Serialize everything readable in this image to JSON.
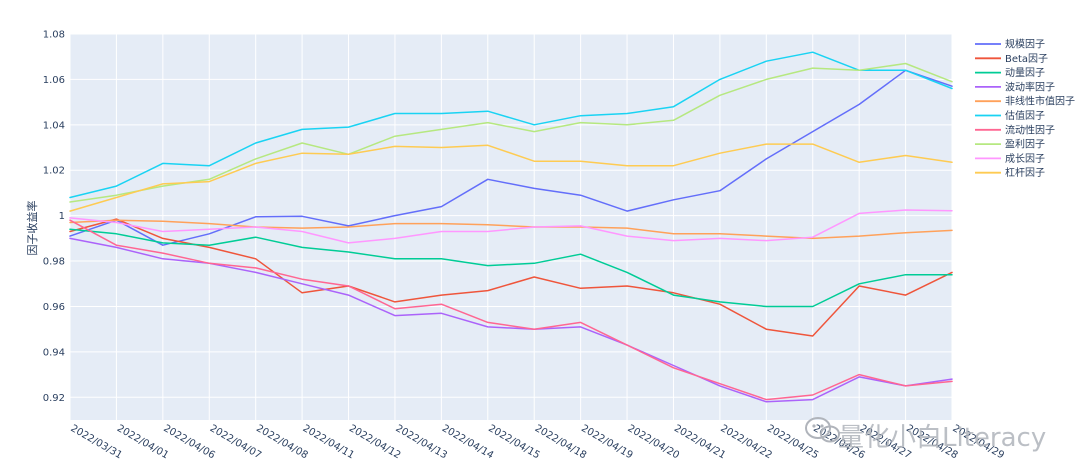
{
  "chart_data": {
    "type": "line",
    "ylabel": "因子收益率",
    "xlabel": "",
    "ylim": [
      0.91,
      1.08
    ],
    "yticks": [
      0.92,
      0.94,
      0.96,
      0.98,
      1,
      1.02,
      1.04,
      1.06,
      1.08
    ],
    "ytick_labels": [
      "0.92",
      "0.94",
      "0.96",
      "0.98",
      "1",
      "1.02",
      "1.04",
      "1.06",
      "1.08"
    ],
    "grid": true,
    "legend_position": "right",
    "x": [
      "2022/03/31",
      "2022/04/01",
      "2022/04/06",
      "2022/04/07",
      "2022/04/08",
      "2022/04/11",
      "2022/04/12",
      "2022/04/13",
      "2022/04/14",
      "2022/04/15",
      "2022/04/18",
      "2022/04/19",
      "2022/04/20",
      "2022/04/21",
      "2022/04/22",
      "2022/04/25",
      "2022/04/26",
      "2022/04/27",
      "2022/04/28",
      "2022/04/29"
    ],
    "series": [
      {
        "name": "规模因子",
        "color": "#636efa",
        "values": [
          0.991,
          0.998,
          0.987,
          0.992,
          0.9995,
          0.9997,
          0.9955,
          1.0,
          1.004,
          1.016,
          1.012,
          1.009,
          1.002,
          1.007,
          1.011,
          1.025,
          1.037,
          1.049,
          1.064,
          1.057
        ]
      },
      {
        "name": "Beta因子",
        "color": "#ef553b",
        "values": [
          0.993,
          0.9985,
          0.99,
          0.986,
          0.981,
          0.966,
          0.969,
          0.962,
          0.965,
          0.967,
          0.973,
          0.968,
          0.969,
          0.966,
          0.961,
          0.95,
          0.947,
          0.969,
          0.965,
          0.975
        ]
      },
      {
        "name": "动量因子",
        "color": "#00cc96",
        "values": [
          0.994,
          0.992,
          0.988,
          0.987,
          0.9905,
          0.986,
          0.984,
          0.981,
          0.981,
          0.978,
          0.979,
          0.983,
          0.975,
          0.965,
          0.962,
          0.96,
          0.96,
          0.97,
          0.974,
          0.974
        ]
      },
      {
        "name": "波动率因子",
        "color": "#ab63fa",
        "values": [
          0.99,
          0.986,
          0.981,
          0.979,
          0.975,
          0.97,
          0.965,
          0.956,
          0.957,
          0.951,
          0.95,
          0.951,
          0.943,
          0.934,
          0.925,
          0.918,
          0.919,
          0.929,
          0.925,
          0.928
        ]
      },
      {
        "name": "非线性市值因子",
        "color": "#ffa15a",
        "values": [
          0.997,
          0.998,
          0.9975,
          0.9965,
          0.995,
          0.9945,
          0.995,
          0.9965,
          0.9965,
          0.996,
          0.995,
          0.995,
          0.9945,
          0.992,
          0.992,
          0.991,
          0.99,
          0.991,
          0.9925,
          0.9935
        ]
      },
      {
        "name": "估值因子",
        "color": "#19d3f3",
        "values": [
          1.008,
          1.013,
          1.023,
          1.022,
          1.032,
          1.038,
          1.039,
          1.045,
          1.045,
          1.046,
          1.04,
          1.044,
          1.045,
          1.048,
          1.06,
          1.068,
          1.072,
          1.064,
          1.064,
          1.056
        ]
      },
      {
        "name": "流动性因子",
        "color": "#ff6692",
        "values": [
          0.998,
          0.987,
          0.9835,
          0.979,
          0.977,
          0.972,
          0.969,
          0.959,
          0.961,
          0.953,
          0.95,
          0.953,
          0.943,
          0.933,
          0.926,
          0.919,
          0.921,
          0.93,
          0.925,
          0.927
        ]
      },
      {
        "name": "盈利因子",
        "color": "#b6e880",
        "values": [
          1.006,
          1.009,
          1.013,
          1.016,
          1.025,
          1.032,
          1.027,
          1.035,
          1.038,
          1.041,
          1.037,
          1.041,
          1.04,
          1.042,
          1.053,
          1.06,
          1.065,
          1.064,
          1.067,
          1.059
        ]
      },
      {
        "name": "成长因子",
        "color": "#ff97ff",
        "values": [
          0.999,
          0.997,
          0.993,
          0.994,
          0.995,
          0.993,
          0.988,
          0.99,
          0.993,
          0.993,
          0.995,
          0.9955,
          0.991,
          0.989,
          0.99,
          0.989,
          0.9905,
          1.001,
          1.0025,
          1.0022
        ]
      },
      {
        "name": "杠杆因子",
        "color": "#fecb52",
        "values": [
          1.002,
          1.008,
          1.014,
          1.015,
          1.023,
          1.0275,
          1.027,
          1.0305,
          1.03,
          1.031,
          1.024,
          1.024,
          1.022,
          1.022,
          1.0275,
          1.0315,
          1.0315,
          1.0235,
          1.0265,
          1.0235
        ]
      }
    ]
  },
  "watermark": {
    "text": "量化小白Literacy",
    "icon": "wechat-icon"
  }
}
